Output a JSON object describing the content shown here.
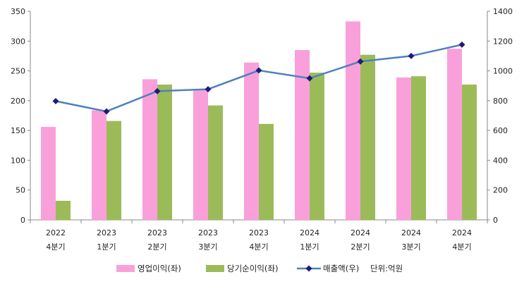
{
  "chart_data": {
    "type": "bar",
    "title": "",
    "categories": [
      [
        "2022",
        "4분기"
      ],
      [
        "2023",
        "1분기"
      ],
      [
        "2023",
        "2분기"
      ],
      [
        "2023",
        "3분기"
      ],
      [
        "2023",
        "4분기"
      ],
      [
        "2024",
        "1분기"
      ],
      [
        "2024",
        "2분기"
      ],
      [
        "2024",
        "3분기"
      ],
      [
        "2024",
        "4분기"
      ]
    ],
    "series": [
      {
        "name": "영업이익(좌)",
        "type": "bar",
        "axis": "left",
        "color": "#F9A0DB",
        "values": [
          156,
          184,
          236,
          220,
          264,
          285,
          333,
          239,
          287
        ]
      },
      {
        "name": "당기순이익(좌)",
        "type": "bar",
        "axis": "left",
        "color": "#9BBB59",
        "values": [
          32,
          166,
          227,
          192,
          161,
          247,
          277,
          241,
          227
        ]
      }
    ],
    "line_series": {
      "name": "매출액(우)",
      "type": "line",
      "axis": "right",
      "color": "#4F81BD",
      "marker_color": "#1F1A7A",
      "values": [
        797,
        728,
        864,
        877,
        1003,
        950,
        1063,
        1100,
        1176
      ]
    },
    "left_axis": {
      "min": 0,
      "max": 350,
      "ticks": [
        "0",
        "50",
        "100",
        "150",
        "200",
        "250",
        "300",
        "350"
      ]
    },
    "right_axis": {
      "min": 0,
      "max": 1400,
      "ticks": [
        "0",
        "200",
        "400",
        "600",
        "800",
        "1000",
        "1200",
        "1400"
      ]
    },
    "unit_note": "단위:억원",
    "legend_position": "bottom",
    "grid": false
  }
}
